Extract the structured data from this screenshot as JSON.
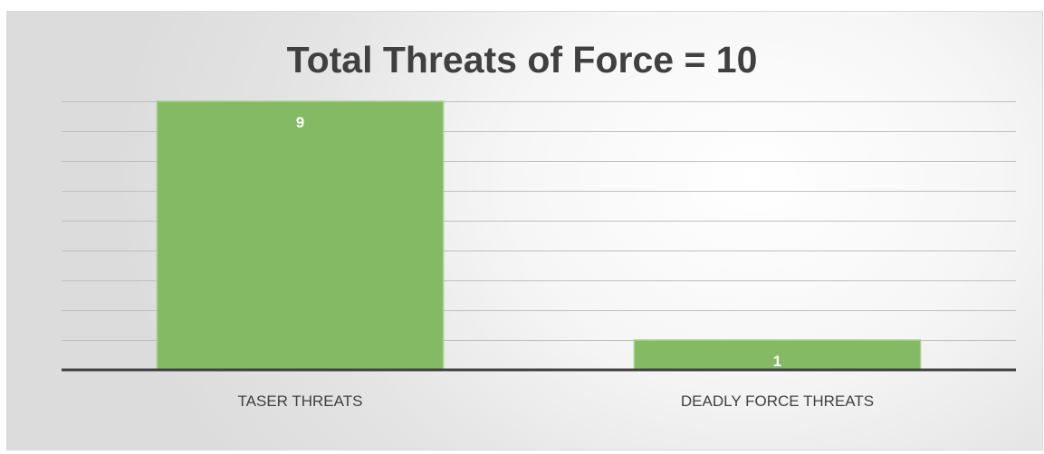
{
  "chart_data": {
    "type": "bar",
    "title": "Total Threats of Force = 10",
    "categories": [
      "TASER THREATS",
      "DEADLY FORCE THREATS"
    ],
    "values": [
      9,
      1
    ],
    "ylim": [
      0,
      9
    ],
    "grid": true,
    "legend": "none",
    "bar_color": "#84BA64",
    "bar_edge_color": "#a9cf92",
    "grid_color": "#bfbfbf",
    "axis_color": "#404040"
  }
}
